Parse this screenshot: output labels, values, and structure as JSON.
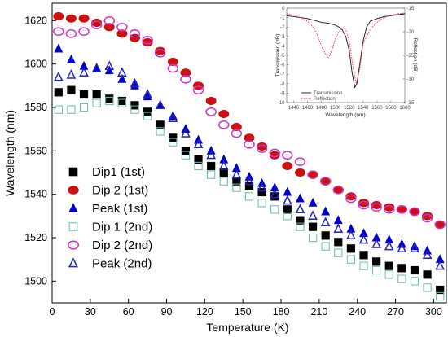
{
  "chart_data": [
    {
      "type": "scatter",
      "xlabel": "Temperature (K)",
      "ylabel": "Wavelength (nm)",
      "xlim": [
        0,
        310
      ],
      "ylim": [
        1490,
        1628
      ],
      "x_ticks": [
        "0",
        "30",
        "60",
        "90",
        "120",
        "150",
        "180",
        "210",
        "240",
        "270",
        "300"
      ],
      "y_ticks": [
        "1500",
        "1520",
        "1540",
        "1560",
        "1580",
        "1600",
        "1620"
      ],
      "legend_position": "left",
      "series": [
        {
          "name": "Dip1  (1st)",
          "marker": "square-filled",
          "color": "#000000",
          "x": [
            5,
            15,
            25,
            35,
            45,
            55,
            65,
            75,
            85,
            95,
            105,
            115,
            125,
            135,
            145,
            155,
            165,
            175,
            185,
            195,
            205,
            215,
            225,
            235,
            245,
            255,
            265,
            275,
            285,
            295,
            305
          ],
          "y": [
            1587,
            1588,
            1586,
            1586,
            1584,
            1583,
            1581,
            1578,
            1572,
            1566,
            1560,
            1556,
            1553,
            1550,
            1546,
            1544,
            1541,
            1539,
            1533,
            1528,
            1525,
            1521,
            1518,
            1515,
            1512,
            1509,
            1507,
            1506,
            1505,
            1503,
            1496
          ]
        },
        {
          "name": "Dip 2  (1st)",
          "marker": "circle-filled",
          "color": "#cc1111",
          "x": [
            5,
            15,
            25,
            35,
            45,
            55,
            65,
            75,
            85,
            95,
            105,
            115,
            125,
            135,
            145,
            155,
            165,
            175,
            185,
            195,
            205,
            215,
            225,
            235,
            245,
            255,
            265,
            275,
            285,
            295,
            305
          ],
          "y": [
            1622,
            1621,
            1621,
            1619,
            1617,
            1614,
            1612,
            1610,
            1606,
            1601,
            1596,
            1590,
            1583,
            1577,
            1571,
            1566,
            1562,
            1558,
            1553,
            1550,
            1549,
            1546,
            1542,
            1539,
            1536,
            1535,
            1534,
            1533,
            1532,
            1530,
            1526
          ]
        },
        {
          "name": "Peak  (1st)",
          "marker": "triangle-filled",
          "color": "#0000cc",
          "x": [
            5,
            15,
            25,
            35,
            45,
            55,
            65,
            75,
            85,
            95,
            105,
            115,
            125,
            135,
            145,
            155,
            165,
            175,
            185,
            195,
            205,
            215,
            225,
            235,
            245,
            255,
            265,
            275,
            285,
            295,
            305
          ],
          "y": [
            1607,
            1602,
            1599,
            1598,
            1597,
            1593,
            1590,
            1585,
            1581,
            1576,
            1570,
            1565,
            1560,
            1556,
            1552,
            1548,
            1545,
            1543,
            1541,
            1538,
            1536,
            1532,
            1528,
            1524,
            1522,
            1520,
            1519,
            1517,
            1516,
            1514,
            1510
          ]
        },
        {
          "name": "Dip 1  (2nd)",
          "marker": "square-open",
          "color": "#66bbaa",
          "x": [
            5,
            15,
            25,
            35,
            45,
            55,
            65,
            75,
            85,
            95,
            105,
            115,
            125,
            135,
            145,
            155,
            165,
            175,
            185,
            195,
            205,
            215,
            225,
            235,
            245,
            255,
            265,
            275,
            285,
            295,
            305
          ],
          "y": [
            1579,
            1579,
            1580,
            1582,
            1583,
            1582,
            1579,
            1576,
            1569,
            1564,
            1558,
            1553,
            1549,
            1546,
            1543,
            1539,
            1536,
            1533,
            1530,
            1525,
            1520,
            1516,
            1513,
            1510,
            1507,
            1505,
            1503,
            1501,
            1500,
            1497,
            1493
          ]
        },
        {
          "name": "Dip 2  (2nd)",
          "marker": "circle-open",
          "color": "#cc33cc",
          "x": [
            5,
            15,
            25,
            35,
            45,
            55,
            65,
            75,
            85,
            95,
            105,
            115,
            125,
            135,
            145,
            155,
            165,
            175,
            185,
            195,
            205,
            215,
            225,
            235,
            245,
            255,
            265,
            275,
            285,
            295,
            305
          ],
          "y": [
            1615,
            1614,
            1615,
            1618,
            1620,
            1617,
            1614,
            1611,
            1605,
            1598,
            1593,
            1588,
            1578,
            1572,
            1568,
            1563,
            1561,
            1559,
            1558,
            1555,
            1549,
            1546,
            1542,
            1538,
            1535,
            1534,
            1533,
            1533,
            1532,
            1529,
            1526
          ]
        },
        {
          "name": "Peak  (2nd)",
          "marker": "triangle-open",
          "color": "#2222bb",
          "x": [
            5,
            15,
            25,
            35,
            45,
            55,
            65,
            75,
            85,
            95,
            105,
            115,
            125,
            135,
            145,
            155,
            165,
            175,
            185,
            195,
            205,
            215,
            225,
            235,
            245,
            255,
            265,
            275,
            285,
            295,
            305
          ],
          "y": [
            1594,
            1595,
            1596,
            1598,
            1599,
            1596,
            1591,
            1586,
            1581,
            1575,
            1568,
            1563,
            1558,
            1553,
            1549,
            1546,
            1543,
            1540,
            1537,
            1533,
            1530,
            1527,
            1524,
            1521,
            1519,
            1517,
            1516,
            1515,
            1515,
            1512,
            1507
          ]
        }
      ]
    },
    {
      "type": "line",
      "xlabel": "Wavelength (nm)",
      "ylabel": "Transmission (dB)",
      "y2label": "Reflection (dB)",
      "xlim": [
        1430,
        1600
      ],
      "ylim": [
        -10,
        0
      ],
      "y2lim": [
        -35,
        -15
      ],
      "x_ticks": [
        "1440",
        "1460",
        "1480",
        "1500",
        "1520",
        "1540",
        "1560",
        "1580",
        "1600"
      ],
      "y_ticks": [
        "0",
        "-1",
        "-2",
        "-3",
        "-4",
        "-5",
        "-6",
        "-7",
        "-8",
        "-9",
        "-10"
      ],
      "y2_ticks": [
        "-15",
        "-20",
        "-25",
        "-30",
        "-35"
      ],
      "legend_position": "bottom-left",
      "series": [
        {
          "name": "Transmission",
          "color": "#111111",
          "axis": "left",
          "x": [
            1430,
            1440,
            1450,
            1460,
            1470,
            1480,
            1490,
            1500,
            1505,
            1510,
            1515,
            1520,
            1524,
            1528,
            1531,
            1535,
            1540,
            1545,
            1550,
            1560,
            1570,
            1580,
            1590,
            1600
          ],
          "y": [
            -0.8,
            -0.9,
            -1.0,
            -1.1,
            -1.3,
            -1.5,
            -1.6,
            -1.8,
            -2.0,
            -2.3,
            -3.0,
            -4.5,
            -6.8,
            -8.4,
            -8.0,
            -6.0,
            -3.5,
            -2.0,
            -1.4,
            -1.1,
            -0.9,
            -0.8,
            -0.7,
            -0.6
          ]
        },
        {
          "name": "Reflection",
          "color": "#ee3344",
          "axis": "right",
          "x": [
            1430,
            1440,
            1450,
            1460,
            1465,
            1470,
            1475,
            1480,
            1485,
            1490,
            1495,
            1500,
            1505,
            1510,
            1515,
            1520,
            1525,
            1530,
            1535,
            1540,
            1550,
            1560,
            1570,
            1580,
            1590,
            1600
          ],
          "y": [
            -16.2,
            -16.5,
            -17.0,
            -17.8,
            -18.5,
            -19.5,
            -21.0,
            -23.0,
            -24.5,
            -25.5,
            -24.0,
            -21.5,
            -20.0,
            -19.2,
            -19.5,
            -22.0,
            -27.0,
            -31.0,
            -28.0,
            -22.5,
            -19.5,
            -18.0,
            -17.0,
            -16.5,
            -16.2,
            -16.0
          ]
        }
      ]
    }
  ]
}
